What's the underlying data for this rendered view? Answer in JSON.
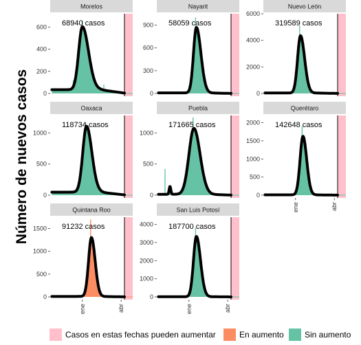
{
  "chart_data": {
    "type": "area",
    "ylabel": "Número de nuevos casos",
    "x_ticks": [
      "ene",
      "abr"
    ],
    "colors": {
      "sin_aumento": "#66c2a5",
      "en_aumento": "#fc8d62",
      "pending": "#ffc0cb",
      "strip": "#d9d9d9",
      "line": "#000000",
      "axis_text": "#333333"
    },
    "legend": [
      {
        "key": "pending",
        "label": "Casos en estas fechas pueden aumentar"
      },
      {
        "key": "en_aumento",
        "label": "En aumento"
      },
      {
        "key": "sin_aumento",
        "label": "Sin aumento"
      }
    ],
    "panels": [
      {
        "name": "Morelos",
        "cases_label": "68940 casos",
        "ylim": [
          0,
          720
        ],
        "yticks": [
          0,
          200,
          400,
          600
        ],
        "trend": "sin_aumento",
        "peak": 580,
        "peak_pos": 0.39,
        "width_l": 0.045,
        "width_r": 0.075,
        "baseline": 35,
        "spikes": [
          [
            0.28,
            120
          ],
          [
            0.33,
            240
          ],
          [
            0.39,
            660
          ],
          [
            0.65,
            80
          ]
        ]
      },
      {
        "name": "Nayarit",
        "cases_label": "58059 casos",
        "ylim": [
          0,
          1050
        ],
        "yticks": [
          0,
          300,
          600,
          900
        ],
        "trend": "sin_aumento",
        "peak": 880,
        "peak_pos": 0.48,
        "width_l": 0.035,
        "width_r": 0.055,
        "baseline": 8,
        "spikes": [
          [
            0.47,
            1000
          ]
        ]
      },
      {
        "name": "Nuevo León",
        "cases_label": "319589 casos",
        "ylim": [
          0,
          6000
        ],
        "yticks": [
          0,
          2000,
          4000,
          6000
        ],
        "trend": "sin_aumento",
        "peak": 4400,
        "peak_pos": 0.45,
        "width_l": 0.035,
        "width_r": 0.05,
        "baseline": 40,
        "spikes": [
          [
            0.44,
            5100
          ]
        ]
      },
      {
        "name": "Oaxaca",
        "cases_label": "118734 casos",
        "ylim": [
          0,
          1280
        ],
        "yticks": [
          0,
          500,
          1000
        ],
        "trend": "sin_aumento",
        "peak": 1080,
        "peak_pos": 0.44,
        "width_l": 0.045,
        "width_r": 0.065,
        "baseline": 50,
        "spikes": [
          [
            0.4,
            880
          ],
          [
            0.43,
            1150
          ]
        ]
      },
      {
        "name": "Puebla",
        "cases_label": "171665 casos",
        "ylim": [
          0,
          1280
        ],
        "yticks": [
          0,
          500,
          1000
        ],
        "trend": "sin_aumento",
        "peak": 1080,
        "peak_pos": 0.45,
        "width_l": 0.06,
        "width_r": 0.075,
        "baseline": 15,
        "spikes": [
          [
            0.1,
            420
          ],
          [
            0.44,
            1250
          ]
        ],
        "bump": [
          0.16,
          130
        ]
      },
      {
        "name": "Querétaro",
        "cases_label": "142648 casos",
        "ylim": [
          0,
          2200
        ],
        "yticks": [
          0,
          500,
          1000,
          1500,
          2000
        ],
        "trend": "sin_aumento",
        "peak": 1650,
        "peak_pos": 0.48,
        "width_l": 0.035,
        "width_r": 0.045,
        "baseline": 10,
        "spikes": [
          [
            0.47,
            1900
          ],
          [
            0.43,
            870
          ]
        ]
      },
      {
        "name": "Quintana Roo",
        "cases_label": "91232 casos",
        "ylim": [
          0,
          1750
        ],
        "yticks": [
          0,
          500,
          1000,
          1500
        ],
        "trend": "en_aumento",
        "peak": 1320,
        "peak_pos": 0.5,
        "width_l": 0.035,
        "width_r": 0.045,
        "baseline": 10,
        "spikes": [
          [
            0.49,
            1700
          ]
        ]
      },
      {
        "name": "San Luis Potosí",
        "cases_label": "187700 casos",
        "ylim": [
          0,
          4400
        ],
        "yticks": [
          0,
          1000,
          2000,
          3000,
          4000
        ],
        "trend": "sin_aumento",
        "peak": 3400,
        "peak_pos": 0.48,
        "width_l": 0.035,
        "width_r": 0.05,
        "baseline": 10,
        "spikes": [
          [
            0.47,
            3800
          ]
        ]
      }
    ]
  }
}
